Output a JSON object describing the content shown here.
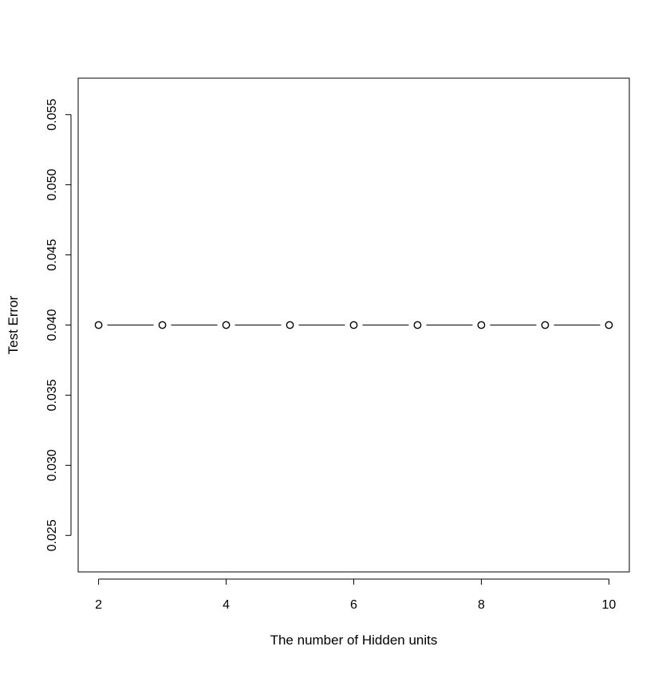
{
  "chart_data": {
    "type": "line",
    "title": "",
    "xlabel": "The number of Hidden units",
    "ylabel": "Test Error",
    "x": [
      2,
      3,
      4,
      5,
      6,
      7,
      8,
      9,
      10
    ],
    "series": [
      {
        "values": [
          0.04,
          0.04,
          0.04,
          0.04,
          0.04,
          0.04,
          0.04,
          0.04,
          0.04
        ]
      }
    ],
    "xlim": [
      1.68,
      10.32
    ],
    "ylim": [
      0.0224,
      0.0576
    ],
    "xticks": [
      2,
      4,
      6,
      8,
      10
    ],
    "xtick_labels": [
      "2",
      "4",
      "6",
      "8",
      "10"
    ],
    "yticks": [
      0.025,
      0.03,
      0.035,
      0.04,
      0.045,
      0.05,
      0.055
    ],
    "ytick_labels": [
      "0.025",
      "0.030",
      "0.035",
      "0.040",
      "0.045",
      "0.050",
      "0.055"
    ],
    "marker": "open-circle",
    "line_style": "solid-with-gaps",
    "grid": false,
    "legend": "none",
    "colors": {
      "line": "#000000",
      "marker_stroke": "#000000",
      "marker_fill": "#ffffff",
      "background": "#ffffff"
    }
  }
}
